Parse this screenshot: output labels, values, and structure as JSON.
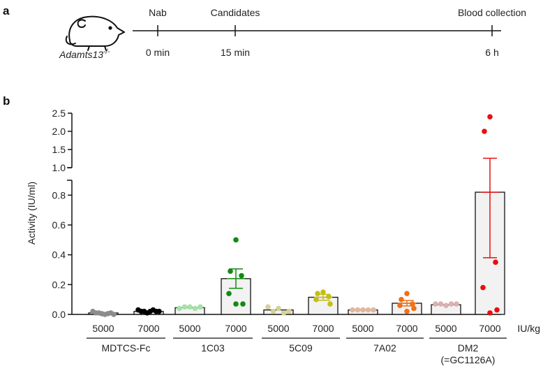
{
  "panel_a": {
    "letter": "a",
    "genotype_base": "Adamts13",
    "genotype_sup": "-/-",
    "events": [
      {
        "label": "Nab",
        "time": "0 min"
      },
      {
        "label": "Candidates",
        "time": "15 min"
      },
      {
        "label": "Blood collection",
        "time": "6 h"
      }
    ]
  },
  "panel_b": {
    "letter": "b"
  },
  "colors": {
    "MDTCS-Fc_5000": "#8c8c8c",
    "MDTCS-Fc_7000": "#000000",
    "1C03_5000": "#a8e0a8",
    "1C03_7000": "#128a12",
    "5C09_5000": "#d6d09a",
    "5C09_7000": "#c4be14",
    "7A02_5000": "#e0b8a0",
    "7A02_7000": "#f07018",
    "DM2_5000": "#dcb0b0",
    "DM2_7000": "#e61010"
  },
  "chart_data": {
    "type": "bar",
    "ylabel": "Activity (IU/ml)",
    "y_axis_break": true,
    "lower_segment": {
      "ylim": [
        0,
        0.9
      ],
      "ticks": [
        "0.0",
        "0.2",
        "0.4",
        "0.6",
        "0.8"
      ]
    },
    "upper_segment": {
      "ylim": [
        1.0,
        2.5
      ],
      "ticks": [
        "1.0",
        "1.5",
        "2.0",
        "2.5"
      ]
    },
    "x_unit_label": "IU/kg",
    "groups": [
      {
        "name": "MDTCS-Fc",
        "name2": "",
        "doses": [
          {
            "dose": "5000",
            "color_key": "MDTCS-Fc_5000",
            "mean": 0.01,
            "sem": null,
            "points": [
              0.02,
              0.01,
              0.01,
              0.005,
              0.0,
              0.005,
              0.01,
              0.0
            ]
          },
          {
            "dose": "7000",
            "color_key": "MDTCS-Fc_7000",
            "mean": 0.02,
            "sem": null,
            "points": [
              0.03,
              0.02,
              0.02,
              0.01,
              0.02,
              0.03,
              0.02,
              0.02
            ]
          }
        ]
      },
      {
        "name": "1C03",
        "name2": "",
        "doses": [
          {
            "dose": "5000",
            "color_key": "1C03_5000",
            "mean": 0.045,
            "sem": null,
            "points": [
              0.04,
              0.05,
              0.05,
              0.04,
              0.05
            ]
          },
          {
            "dose": "7000",
            "color_key": "1C03_7000",
            "mean": 0.24,
            "sem": 0.065,
            "points": [
              0.5,
              0.29,
              0.26,
              0.14,
              0.07,
              0.07
            ]
          }
        ]
      },
      {
        "name": "5C09",
        "name2": "",
        "doses": [
          {
            "dose": "5000",
            "color_key": "5C09_5000",
            "mean": 0.03,
            "sem": null,
            "points": [
              0.05,
              0.02,
              0.04,
              0.01,
              0.02
            ]
          },
          {
            "dose": "7000",
            "color_key": "5C09_7000",
            "mean": 0.115,
            "sem": 0.02,
            "points": [
              0.15,
              0.14,
              0.12,
              0.1,
              0.07
            ]
          }
        ]
      },
      {
        "name": "7A02",
        "name2": "",
        "doses": [
          {
            "dose": "5000",
            "color_key": "7A02_5000",
            "mean": 0.03,
            "sem": null,
            "points": [
              0.03,
              0.03,
              0.03,
              0.03,
              0.03
            ]
          },
          {
            "dose": "7000",
            "color_key": "7A02_7000",
            "mean": 0.075,
            "sem": 0.018,
            "points": [
              0.14,
              0.1,
              0.07,
              0.06,
              0.04,
              0.02
            ]
          }
        ]
      },
      {
        "name": "DM2",
        "name2": "(=GC1126A)",
        "doses": [
          {
            "dose": "5000",
            "color_key": "DM2_5000",
            "mean": 0.065,
            "sem": null,
            "points": [
              0.07,
              0.07,
              0.06,
              0.07,
              0.07
            ]
          },
          {
            "dose": "7000",
            "color_key": "DM2_7000",
            "mean": 0.82,
            "sem": 0.44,
            "points": [
              2.4,
              2.0,
              0.35,
              0.18,
              0.03,
              0.01
            ]
          }
        ]
      }
    ]
  }
}
